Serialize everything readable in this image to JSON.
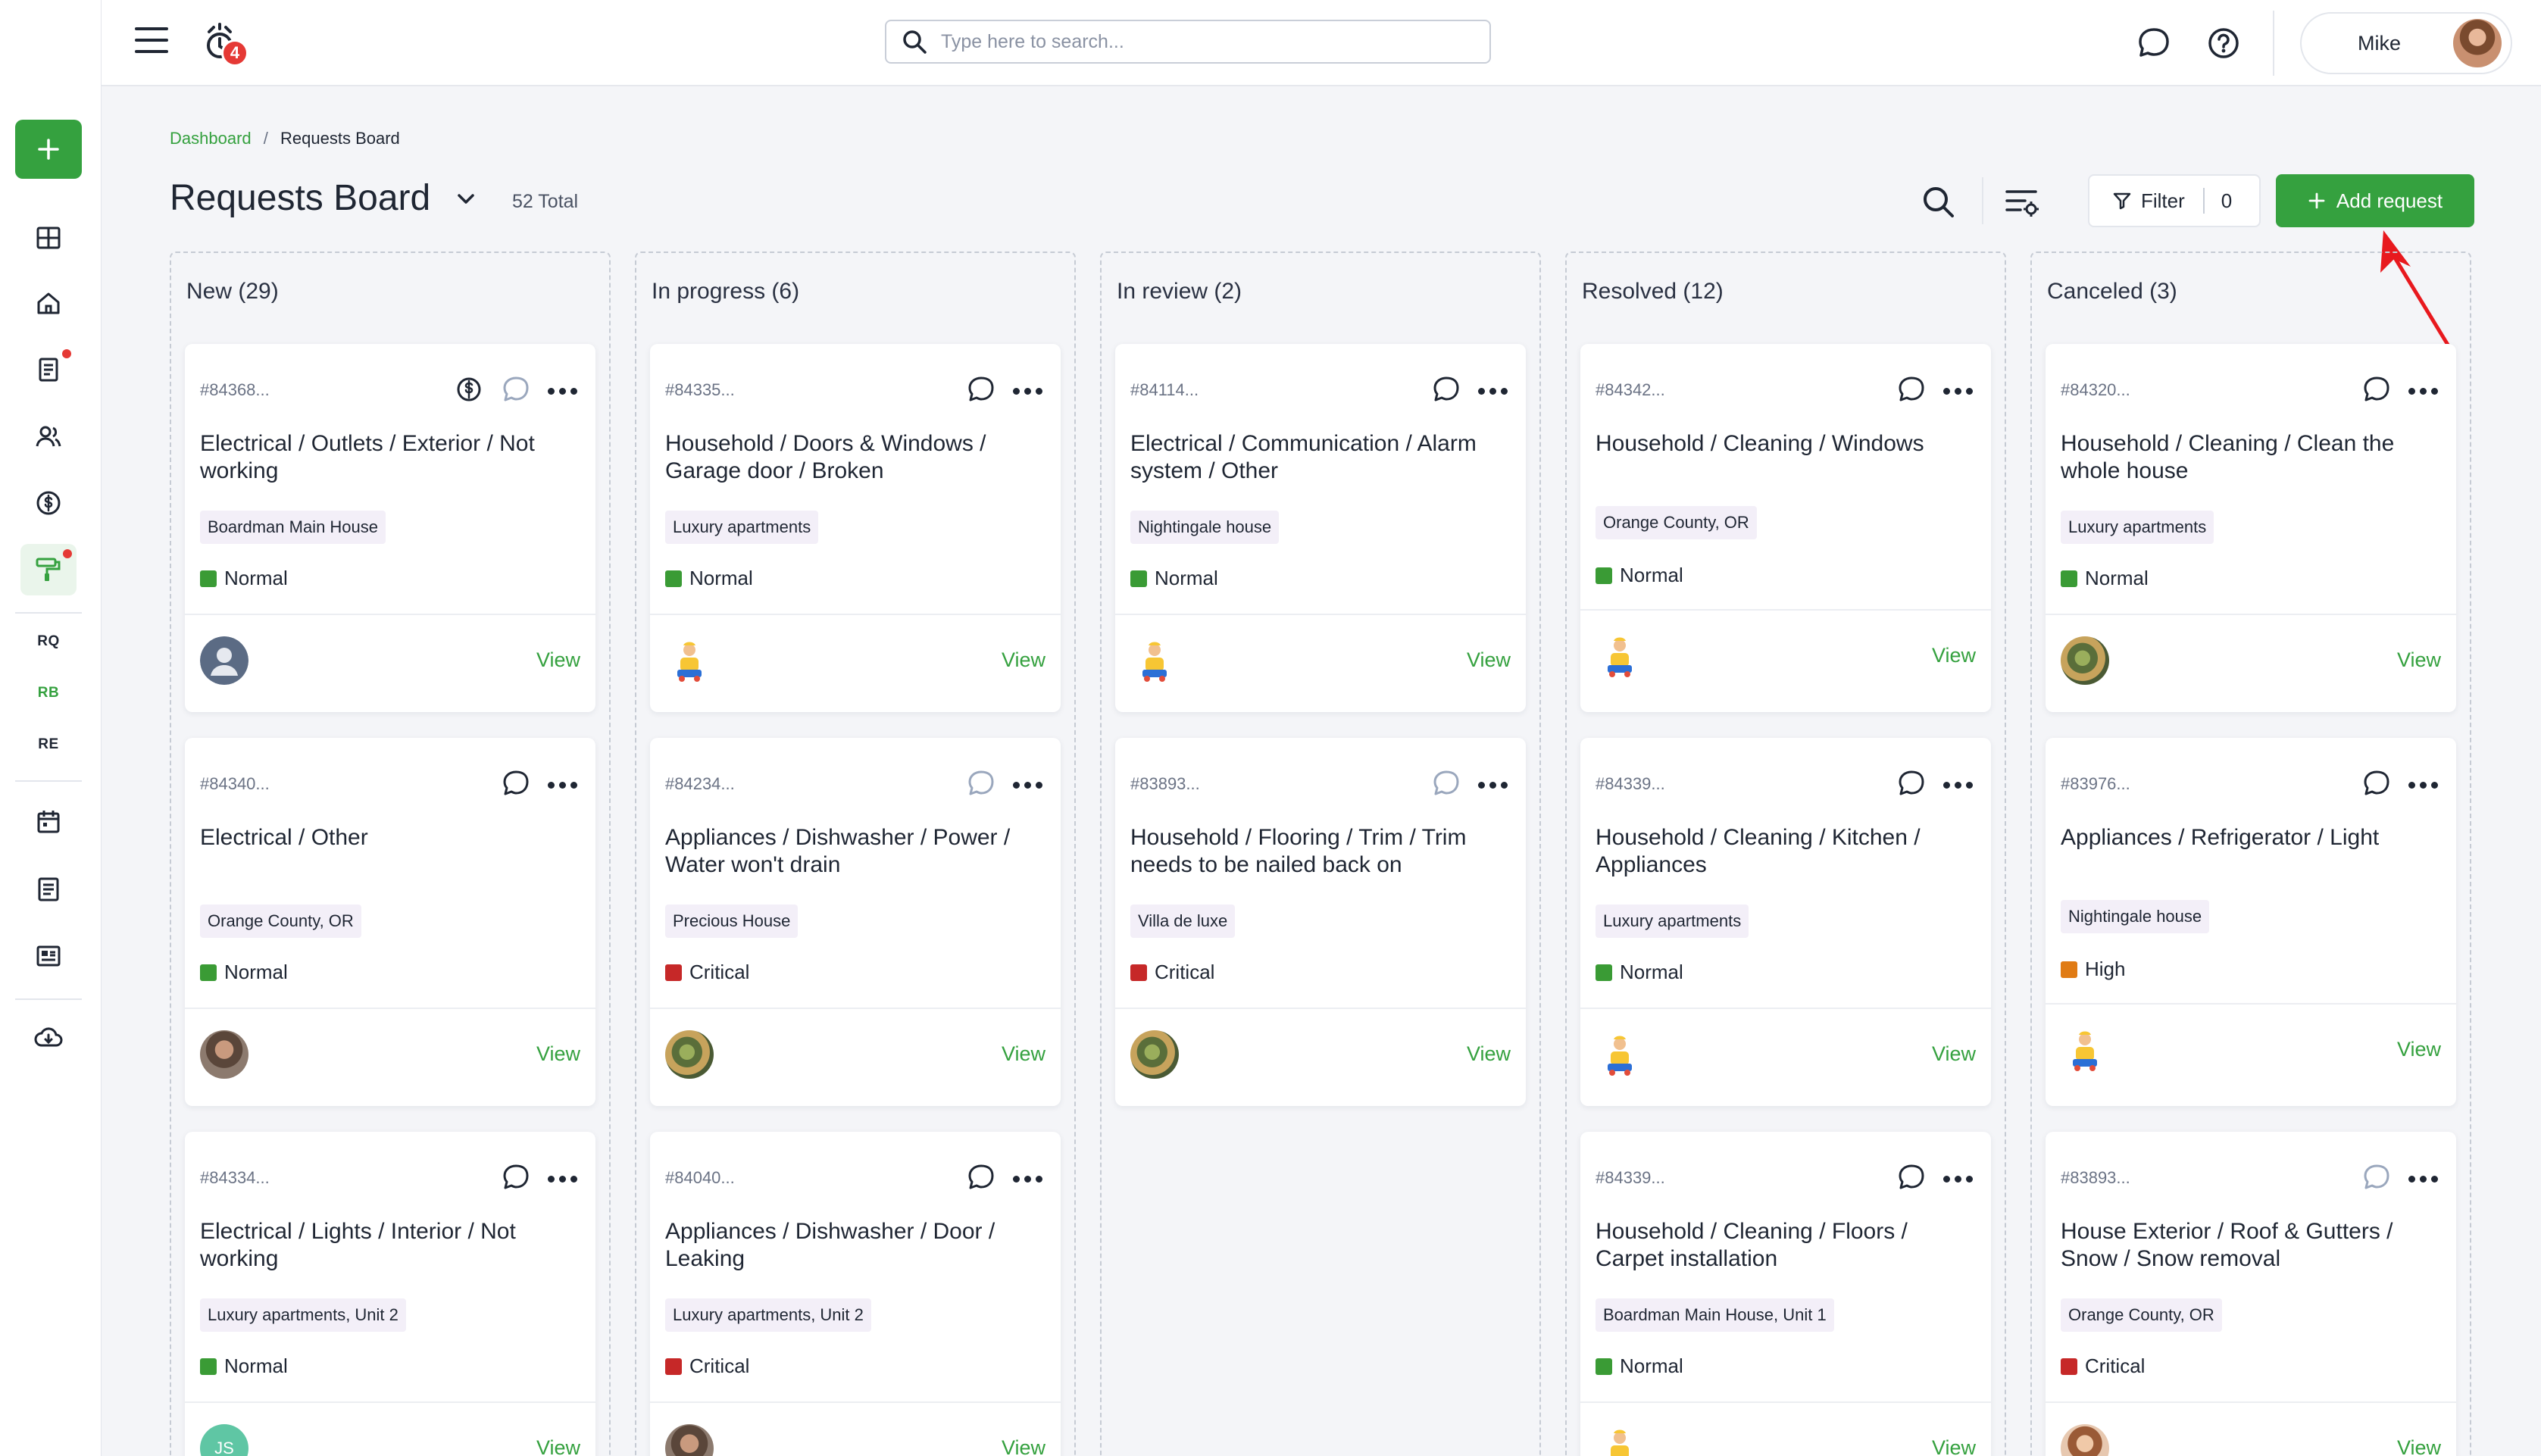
{
  "topbar": {
    "notification_count": "4",
    "search_placeholder": "Type here to search...",
    "user_name": "Mike"
  },
  "sidebar": {
    "short_items": [
      "RQ",
      "RB",
      "RE"
    ]
  },
  "breadcrumb": {
    "parent": "Dashboard",
    "separator": "/",
    "current": "Requests Board"
  },
  "board": {
    "title": "Requests Board",
    "total": "52 Total",
    "filter_label": "Filter",
    "filter_count": "0",
    "add_label": "Add request"
  },
  "colors": {
    "accent": "#35a13f",
    "normal": "#3a9b35",
    "critical": "#c62828",
    "high": "#e07b14"
  },
  "columns": [
    {
      "title": "New (29)",
      "cards": [
        {
          "id": "#84368...",
          "title": "Electrical / Outlets / Exterior / Not working",
          "tag": "Boardman Main House",
          "priority": "Normal",
          "view": "View",
          "avatar": "default-avatar",
          "icons": [
            "dollar-icon",
            "chat-icon-light",
            "more-icon"
          ]
        },
        {
          "id": "#84340...",
          "title": "Electrical / Other",
          "tag": "Orange County, OR",
          "priority": "Normal",
          "view": "View",
          "avatar": "man-photo",
          "icons": [
            "chat-icon",
            "more-icon"
          ]
        },
        {
          "id": "#84334...",
          "title": "Electrical / Lights / Interior / Not working",
          "tag": "Luxury apartments, Unit 2",
          "priority": "Normal",
          "view": "View",
          "avatar": "initials",
          "initials": "JS",
          "icons": [
            "chat-icon",
            "more-icon"
          ]
        }
      ]
    },
    {
      "title": "In progress (6)",
      "cards": [
        {
          "id": "#84335...",
          "title": "Household / Doors & Windows / Garage door / Broken",
          "tag": "Luxury apartments",
          "priority": "Normal",
          "view": "View",
          "avatar": "worker-photo",
          "icons": [
            "chat-icon",
            "more-icon"
          ]
        },
        {
          "id": "#84234...",
          "title": "Appliances / Dishwasher / Power / Water won't drain",
          "tag": "Precious House",
          "priority": "Critical",
          "view": "View",
          "avatar": "outdoor-photo",
          "icons": [
            "chat-icon-light",
            "more-icon"
          ]
        },
        {
          "id": "#84040...",
          "title": "Appliances / Dishwasher / Door / Leaking",
          "tag": "Luxury apartments, Unit 2",
          "priority": "Critical",
          "view": "View",
          "avatar": "man-photo",
          "icons": [
            "chat-icon",
            "more-icon"
          ]
        }
      ]
    },
    {
      "title": "In review (2)",
      "cards": [
        {
          "id": "#84114...",
          "title": "Electrical / Communication / Alarm system / Other",
          "tag": "Nightingale house",
          "priority": "Normal",
          "view": "View",
          "avatar": "worker-photo",
          "icons": [
            "chat-icon",
            "more-icon"
          ]
        },
        {
          "id": "#83893...",
          "title": "Household / Flooring / Trim / Trim needs to be nailed back on",
          "tag": "Villa de luxe",
          "priority": "Critical",
          "view": "View",
          "avatar": "outdoor-photo",
          "icons": [
            "chat-icon-light",
            "more-icon"
          ]
        }
      ]
    },
    {
      "title": "Resolved (12)",
      "cards": [
        {
          "id": "#84342...",
          "title": "Household / Cleaning / Windows",
          "tag": "Orange County, OR",
          "priority": "Normal",
          "view": "View",
          "avatar": "worker-photo",
          "short": true,
          "icons": [
            "chat-icon",
            "more-icon"
          ]
        },
        {
          "id": "#84339...",
          "title": "Household / Cleaning / Kitchen / Appliances",
          "tag": "Luxury apartments",
          "priority": "Normal",
          "view": "View",
          "avatar": "worker-photo",
          "icons": [
            "chat-icon",
            "more-icon"
          ]
        },
        {
          "id": "#84339...",
          "title": "Household / Cleaning / Floors / Carpet installation",
          "tag": "Boardman Main House, Unit 1",
          "priority": "Normal",
          "view": "View",
          "avatar": "worker-photo",
          "icons": [
            "chat-icon",
            "more-icon"
          ]
        }
      ]
    },
    {
      "title": "Canceled (3)",
      "cards": [
        {
          "id": "#84320...",
          "title": "Household / Cleaning / Clean the whole house",
          "tag": "Luxury apartments",
          "priority": "Normal",
          "view": "View",
          "avatar": "outdoor-photo",
          "icons": [
            "chat-icon",
            "more-icon"
          ]
        },
        {
          "id": "#83976...",
          "title": "Appliances / Refrigerator / Light",
          "tag": "Nightingale house",
          "priority": "High",
          "view": "View",
          "avatar": "worker-photo",
          "short": true,
          "icons": [
            "chat-icon",
            "more-icon"
          ]
        },
        {
          "id": "#83893...",
          "title": "House Exterior / Roof & Gutters / Snow / Snow removal",
          "tag": "Orange County, OR",
          "priority": "Critical",
          "view": "View",
          "avatar": "woman-photo",
          "icons": [
            "chat-icon-light",
            "more-icon"
          ]
        }
      ]
    }
  ]
}
